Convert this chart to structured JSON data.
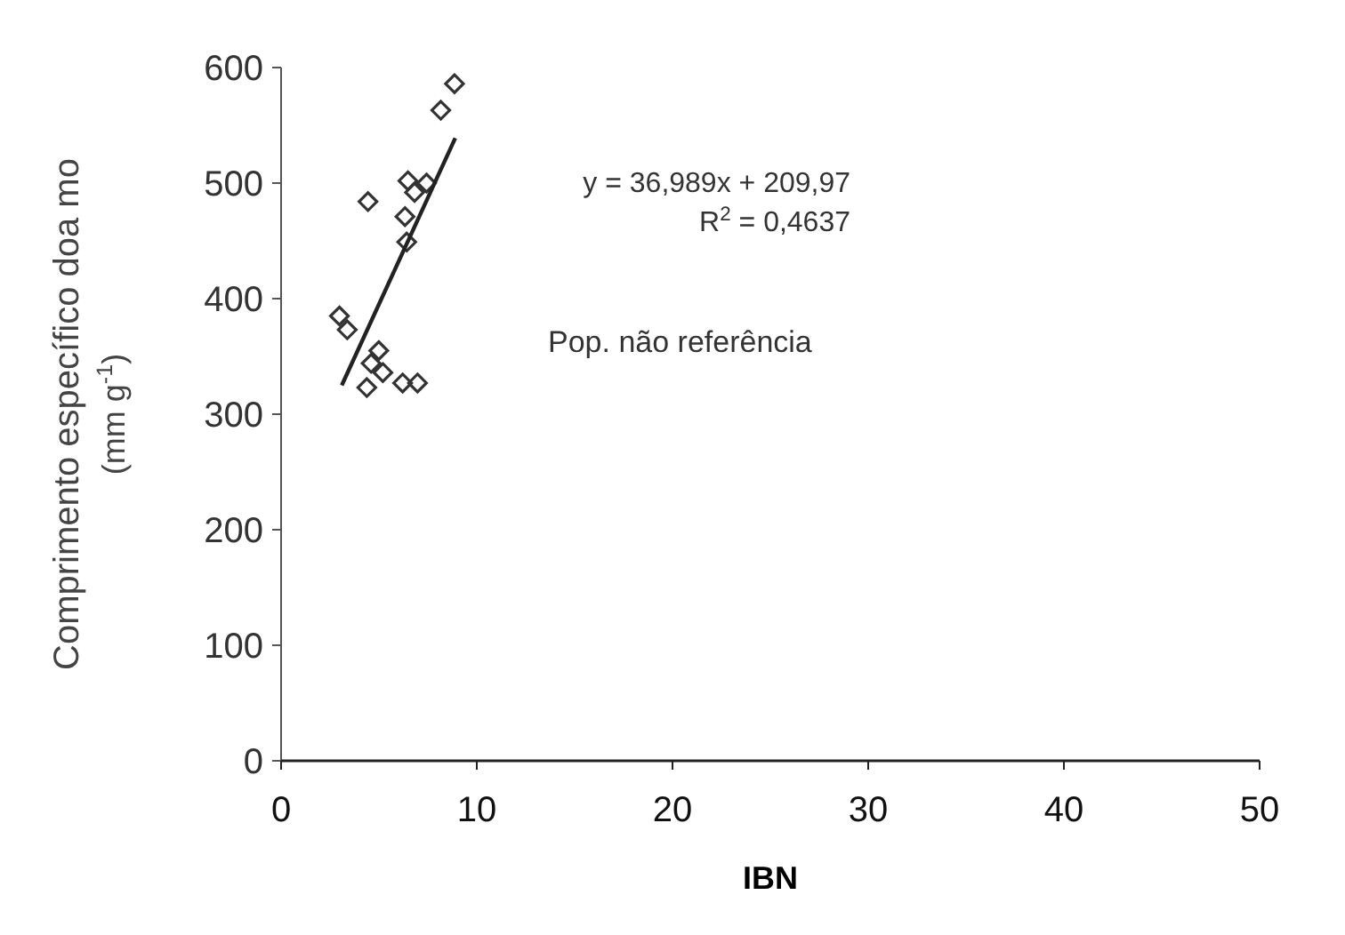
{
  "chart_data": {
    "type": "scatter",
    "xlabel": "IBN",
    "ylabel": "Comprimento específico doa mo (mm g$^{-1}$)",
    "xlim": [
      0,
      50
    ],
    "xticks": [
      0,
      10,
      20,
      30,
      40,
      50
    ],
    "ylim": [
      0,
      600
    ],
    "yticks": [
      0,
      100,
      200,
      300,
      400,
      500,
      600
    ],
    "grid": false,
    "series": [
      {
        "color": "#333333",
        "marker": "diamond",
        "x": [
          8.86,
          8.16,
          6.48,
          7.43,
          6.82,
          4.44,
          6.33,
          6.42,
          2.98,
          3.38,
          4.99,
          4.6,
          5.2,
          4.38,
          6.21,
          6.97
        ],
        "values": [
          586,
          563,
          502,
          500,
          492,
          484,
          471,
          449,
          385,
          373,
          355,
          344,
          336,
          323,
          327,
          327
        ]
      },
      {
        "type": "line",
        "color": "#222222",
        "x": [
          3.1,
          8.9
        ],
        "values": [
          325,
          539
        ]
      }
    ],
    "annotations": [
      "y = 36,989x + 209,97",
      "R$^{2}$ = 0,4637",
      "Pop. não referência"
    ]
  }
}
